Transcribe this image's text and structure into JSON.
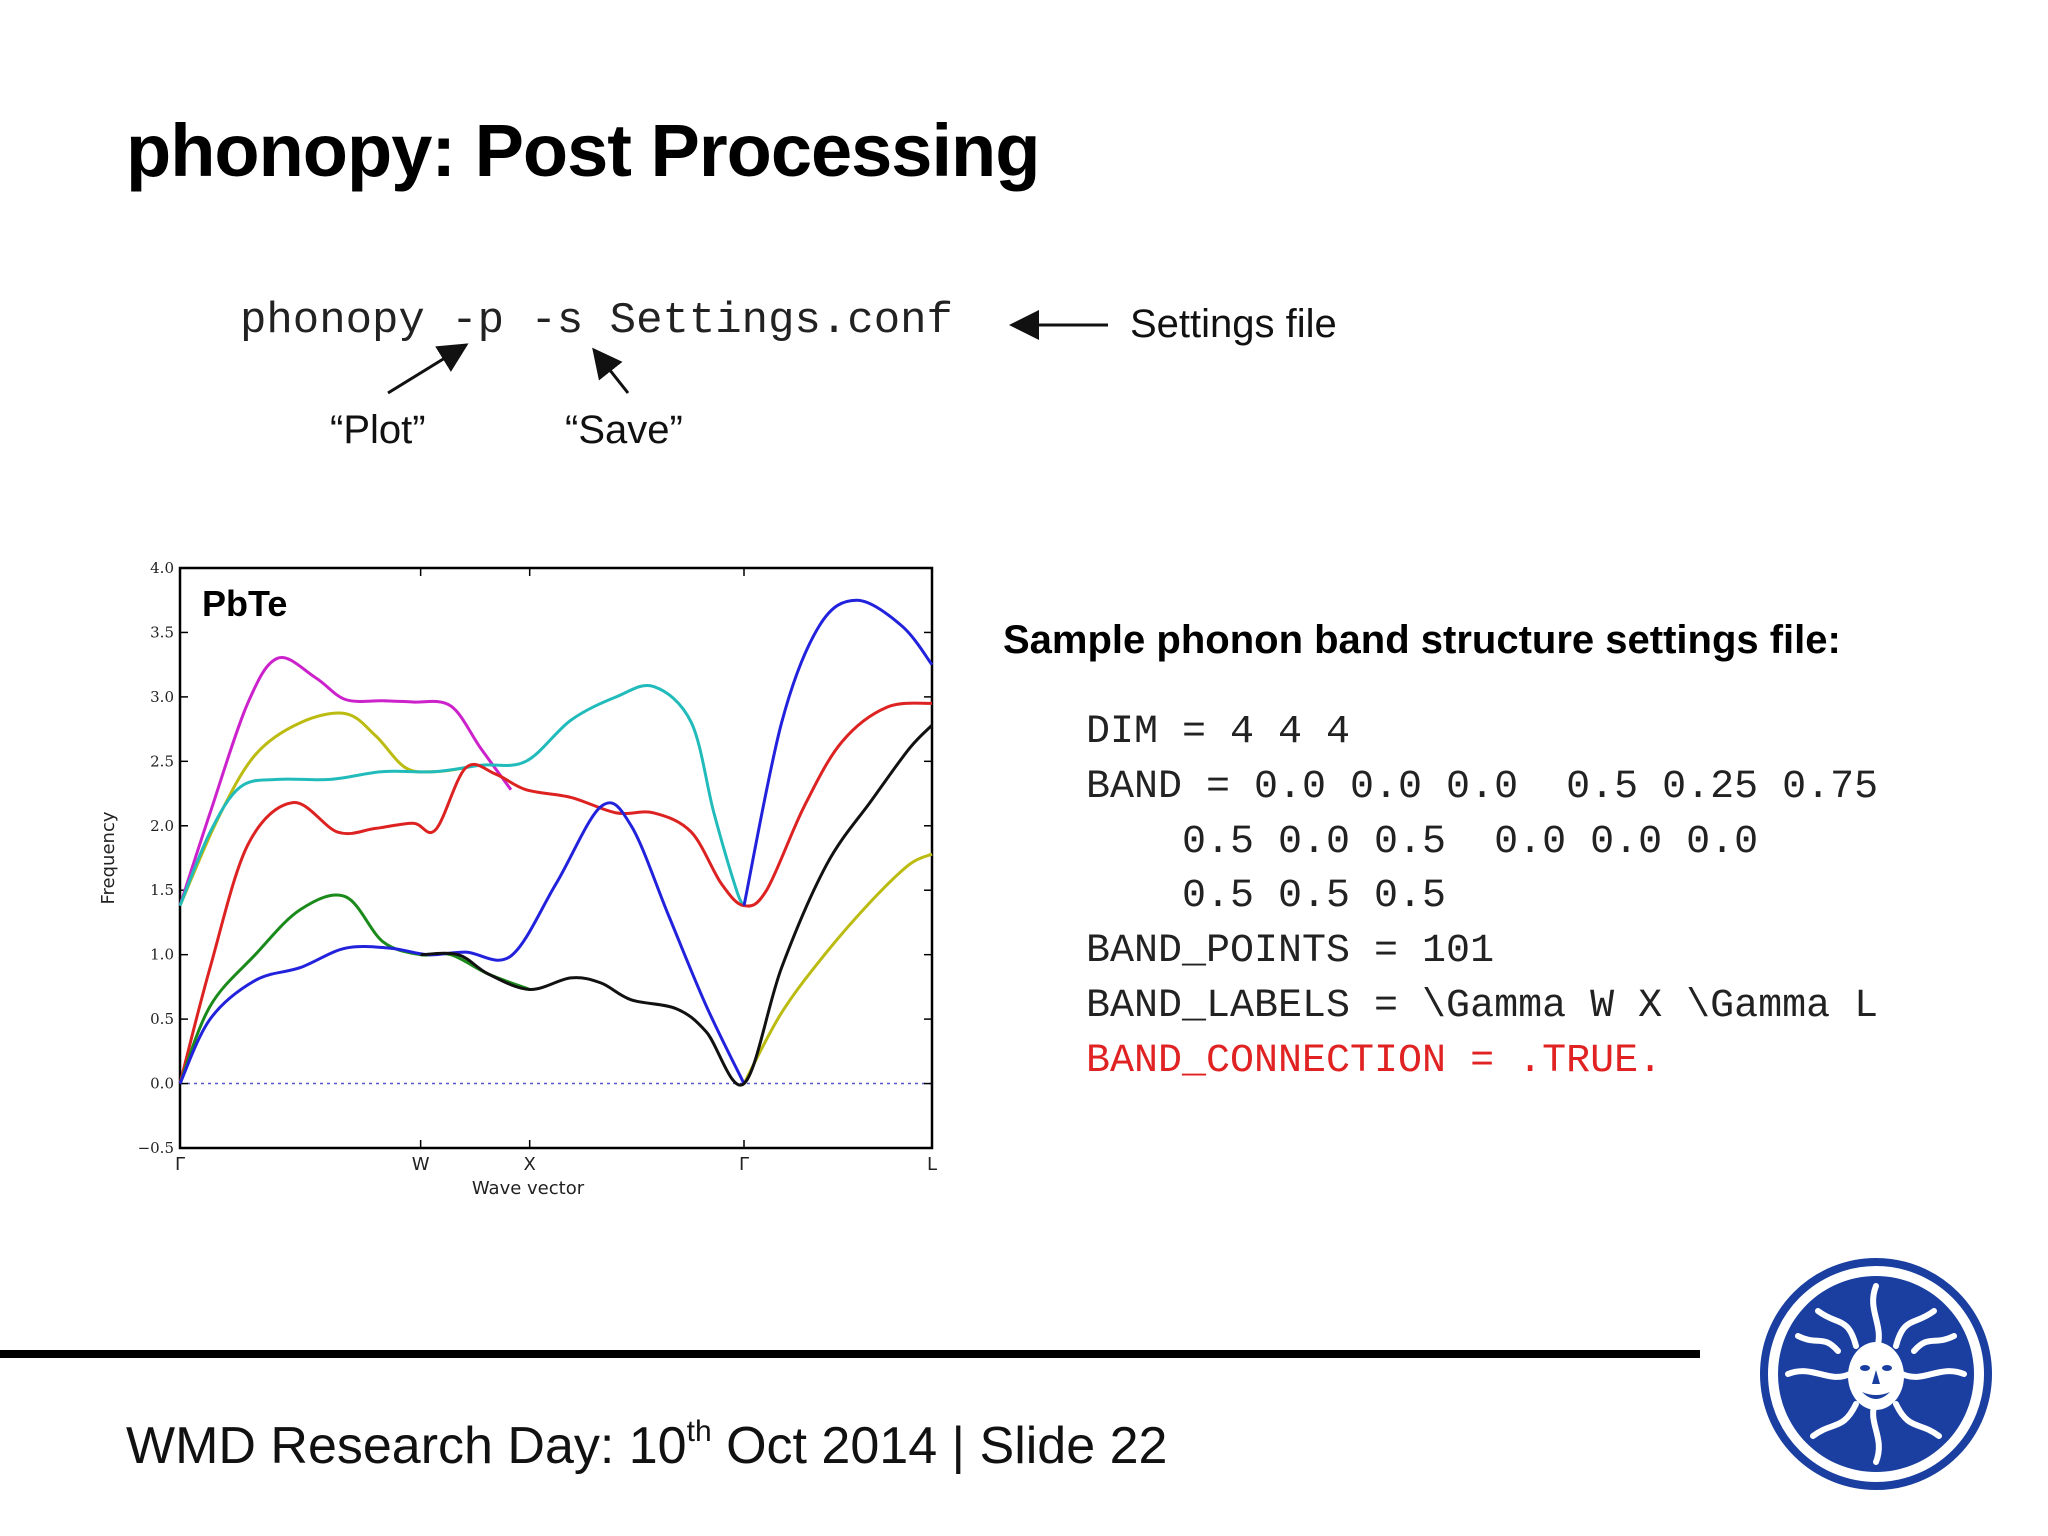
{
  "slide": {
    "title": "phonopy: Post Processing",
    "command": "phonopy -p -s Settings.conf",
    "annotations": {
      "settings_file": "Settings file",
      "plot": "“Plot”",
      "save": "“Save”"
    },
    "settings_heading": "Sample phonon band structure settings file:",
    "settings_lines": [
      "DIM = 4 4 4",
      "BAND = 0.0 0.0 0.0  0.5 0.25 0.75",
      "    0.5 0.0 0.5  0.0 0.0 0.0",
      "    0.5 0.5 0.5",
      "BAND_POINTS = 101",
      "BAND_LABELS = \\Gamma W X \\Gamma L",
      "BAND_CONNECTION = .TRUE."
    ],
    "highlight_color": "#e02222",
    "footer": {
      "prefix": "WMD Research Day: 10",
      "superscript": "th",
      "suffix": " Oct 2014 | Slide 22"
    },
    "logo_icon": "university-seal-icon",
    "logo_color": "#1a3fa0"
  },
  "chart_data": {
    "type": "line",
    "annotation": "PbTe",
    "xlabel": "Wave vector",
    "ylabel": "Frequency",
    "ylim": [
      -0.5,
      4.0
    ],
    "yticks": [
      -0.5,
      0.0,
      0.5,
      1.0,
      1.5,
      2.0,
      2.5,
      3.0,
      3.5,
      4.0
    ],
    "ytick_labels": [
      "−0.5",
      "0.0",
      "0.5",
      "1.0",
      "1.5",
      "2.0",
      "2.5",
      "3.0",
      "3.5",
      "4.0"
    ],
    "xlim": [
      0,
      1
    ],
    "xticks": [
      0,
      0.32,
      0.465,
      0.75,
      1.0
    ],
    "xtick_labels": [
      "Γ",
      "W",
      "X",
      "Γ",
      "L"
    ],
    "zero_line": true,
    "legend": false,
    "series": [
      {
        "color": "#cc22cc",
        "points": [
          [
            0,
            1.38
          ],
          [
            0.04,
            2.1
          ],
          [
            0.09,
            2.95
          ],
          [
            0.13,
            3.3
          ],
          [
            0.18,
            3.15
          ],
          [
            0.22,
            2.98
          ],
          [
            0.27,
            2.97
          ],
          [
            0.31,
            2.96
          ],
          [
            0.36,
            2.93
          ],
          [
            0.4,
            2.6
          ],
          [
            0.44,
            2.28
          ]
        ]
      },
      {
        "color": "#bbbb11",
        "points": [
          [
            0,
            1.38
          ],
          [
            0.05,
            2.05
          ],
          [
            0.1,
            2.55
          ],
          [
            0.16,
            2.8
          ],
          [
            0.22,
            2.87
          ],
          [
            0.26,
            2.7
          ],
          [
            0.3,
            2.45
          ],
          [
            0.34,
            2.42
          ],
          [
            0.38,
            2.45
          ]
        ]
      },
      {
        "color": "#bbbb11",
        "points": [
          [
            0.75,
            0.0
          ],
          [
            0.8,
            0.55
          ],
          [
            0.86,
            1.02
          ],
          [
            0.92,
            1.42
          ],
          [
            0.97,
            1.7
          ],
          [
            1.0,
            1.78
          ]
        ]
      },
      {
        "color": "#22bbbb",
        "points": [
          [
            0,
            1.38
          ],
          [
            0.04,
            1.95
          ],
          [
            0.08,
            2.3
          ],
          [
            0.13,
            2.36
          ],
          [
            0.2,
            2.36
          ],
          [
            0.27,
            2.42
          ],
          [
            0.34,
            2.42
          ],
          [
            0.4,
            2.47
          ],
          [
            0.46,
            2.5
          ],
          [
            0.52,
            2.82
          ],
          [
            0.58,
            3.0
          ],
          [
            0.63,
            3.08
          ],
          [
            0.68,
            2.8
          ],
          [
            0.71,
            2.1
          ],
          [
            0.74,
            1.5
          ],
          [
            0.75,
            1.38
          ]
        ]
      },
      {
        "color": "#dd2222",
        "points": [
          [
            0,
            0.0
          ],
          [
            0.04,
            0.9
          ],
          [
            0.09,
            1.85
          ],
          [
            0.15,
            2.18
          ],
          [
            0.21,
            1.95
          ],
          [
            0.26,
            1.98
          ],
          [
            0.31,
            2.02
          ],
          [
            0.34,
            1.97
          ],
          [
            0.38,
            2.45
          ],
          [
            0.42,
            2.4
          ],
          [
            0.46,
            2.28
          ],
          [
            0.52,
            2.22
          ],
          [
            0.58,
            2.1
          ],
          [
            0.63,
            2.1
          ],
          [
            0.68,
            1.95
          ],
          [
            0.72,
            1.55
          ],
          [
            0.75,
            1.38
          ],
          [
            0.78,
            1.5
          ],
          [
            0.83,
            2.15
          ],
          [
            0.88,
            2.65
          ],
          [
            0.94,
            2.92
          ],
          [
            1.0,
            2.95
          ]
        ]
      },
      {
        "color": "#1a8a1a",
        "points": [
          [
            0,
            0.0
          ],
          [
            0.04,
            0.6
          ],
          [
            0.1,
            1.0
          ],
          [
            0.16,
            1.35
          ],
          [
            0.22,
            1.45
          ],
          [
            0.27,
            1.1
          ],
          [
            0.32,
            1.0
          ],
          [
            0.36,
            1.0
          ],
          [
            0.41,
            0.85
          ],
          [
            0.465,
            0.73
          ]
        ]
      },
      {
        "color": "#2222dd",
        "points": [
          [
            0,
            0.0
          ],
          [
            0.04,
            0.5
          ],
          [
            0.1,
            0.8
          ],
          [
            0.16,
            0.9
          ],
          [
            0.22,
            1.05
          ],
          [
            0.28,
            1.05
          ],
          [
            0.33,
            1.0
          ],
          [
            0.38,
            1.02
          ],
          [
            0.44,
            0.99
          ],
          [
            0.5,
            1.55
          ],
          [
            0.56,
            2.15
          ],
          [
            0.6,
            2.0
          ],
          [
            0.65,
            1.3
          ],
          [
            0.7,
            0.6
          ],
          [
            0.75,
            0.0
          ]
        ]
      },
      {
        "color": "#2222dd",
        "points": [
          [
            0.75,
            1.38
          ],
          [
            0.8,
            2.8
          ],
          [
            0.85,
            3.55
          ],
          [
            0.9,
            3.75
          ],
          [
            0.96,
            3.55
          ],
          [
            1.0,
            3.25
          ]
        ]
      },
      {
        "color": "#111111",
        "points": [
          [
            0.32,
            1.0
          ],
          [
            0.37,
            1.0
          ],
          [
            0.41,
            0.85
          ],
          [
            0.465,
            0.73
          ],
          [
            0.52,
            0.82
          ],
          [
            0.56,
            0.78
          ],
          [
            0.6,
            0.65
          ],
          [
            0.66,
            0.58
          ],
          [
            0.7,
            0.4
          ],
          [
            0.75,
            0.0
          ],
          [
            0.8,
            0.9
          ],
          [
            0.86,
            1.7
          ],
          [
            0.92,
            2.2
          ],
          [
            0.97,
            2.6
          ],
          [
            1.0,
            2.78
          ]
        ]
      }
    ]
  }
}
